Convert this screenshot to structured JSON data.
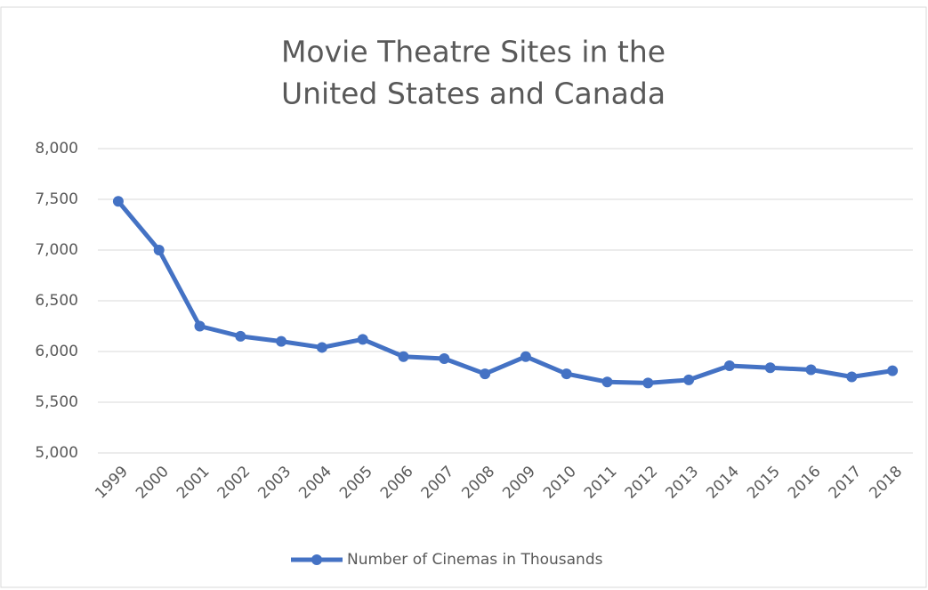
{
  "chart_data": {
    "type": "line",
    "title": [
      "Movie Theatre Sites in the",
      "United States and Canada"
    ],
    "categories": [
      "1999",
      "2000",
      "2001",
      "2002",
      "2003",
      "2004",
      "2005",
      "2006",
      "2007",
      "2008",
      "2009",
      "2010",
      "2011",
      "2012",
      "2013",
      "2014",
      "2015",
      "2016",
      "2017",
      "2018"
    ],
    "series": [
      {
        "name": "Number of Cinemas in Thousands",
        "color": "#4472c4",
        "values": [
          7480,
          7000,
          6250,
          6150,
          6100,
          6040,
          6120,
          5950,
          5930,
          5780,
          5950,
          5780,
          5700,
          5690,
          5720,
          5860,
          5840,
          5820,
          5750,
          5810
        ]
      }
    ],
    "ylim": [
      5000,
      8000
    ],
    "yticks": [
      {
        "value": 5000,
        "label": "5,000"
      },
      {
        "value": 5500,
        "label": "5,500"
      },
      {
        "value": 6000,
        "label": "6,000"
      },
      {
        "value": 6500,
        "label": "6,500"
      },
      {
        "value": 7000,
        "label": "7,000"
      },
      {
        "value": 7500,
        "label": "7,500"
      },
      {
        "value": 8000,
        "label": "8,000"
      }
    ],
    "grid": true,
    "legend": "bottom"
  }
}
